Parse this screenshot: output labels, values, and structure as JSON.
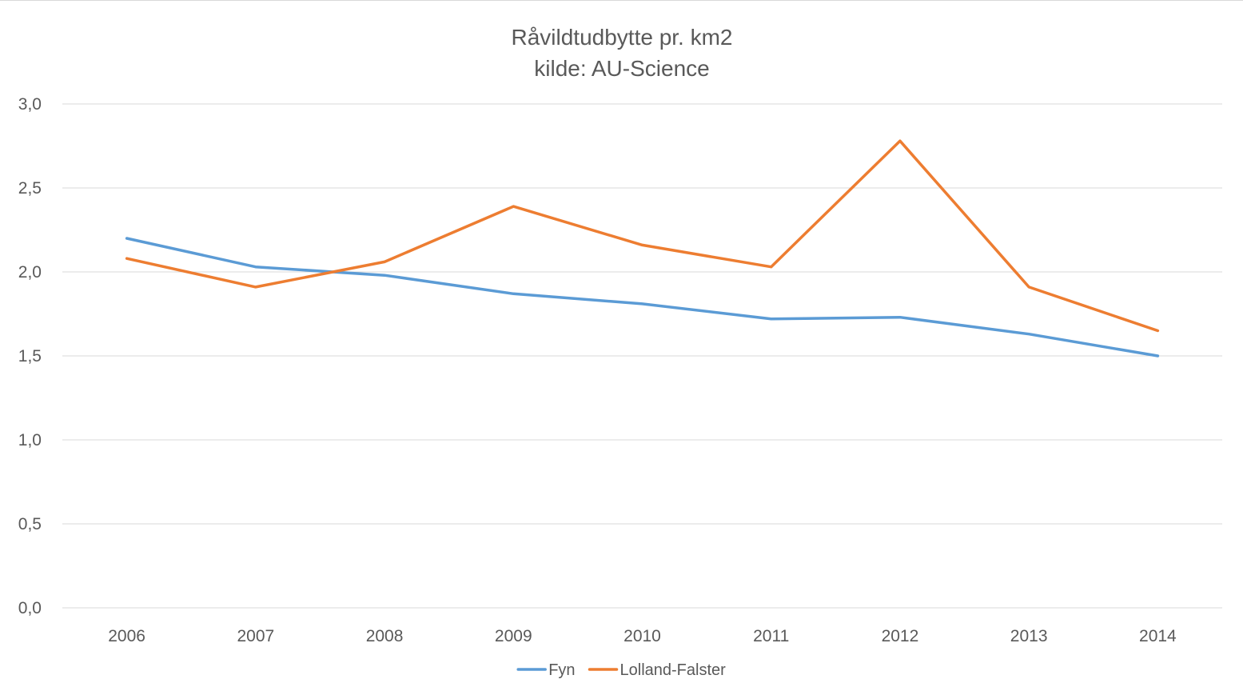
{
  "chart_data": {
    "type": "line",
    "title": "Råvildtudbytte pr. km2",
    "subtitle": "kilde: AU-Science",
    "xlabel": "",
    "ylabel": "",
    "categories": [
      "2006",
      "2007",
      "2008",
      "2009",
      "2010",
      "2011",
      "2012",
      "2013",
      "2014"
    ],
    "ylim": [
      0,
      3
    ],
    "y_ticks": [
      "0,0",
      "0,5",
      "1,0",
      "1,5",
      "2,0",
      "2,5",
      "3,0"
    ],
    "grid": true,
    "legend_position": "bottom",
    "series": [
      {
        "name": "Fyn",
        "color": "#5b9bd5",
        "values": [
          2.2,
          2.03,
          1.98,
          1.87,
          1.81,
          1.72,
          1.73,
          1.63,
          1.5
        ]
      },
      {
        "name": "Lolland-Falster",
        "color": "#ed7d31",
        "values": [
          2.08,
          1.91,
          2.06,
          2.39,
          2.16,
          2.03,
          2.78,
          1.91,
          1.65
        ]
      }
    ]
  }
}
